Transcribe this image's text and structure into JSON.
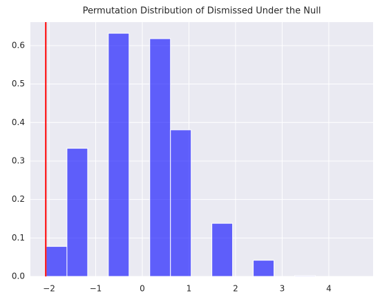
{
  "chart_data": {
    "type": "histogram",
    "title": "Permutation Distribution of Dismissed Under the Null",
    "bins": [
      -2.06,
      -1.616,
      -1.172,
      -0.728,
      -0.284,
      0.16,
      0.604,
      1.048,
      1.492,
      1.936,
      2.38,
      2.824,
      3.268,
      3.712,
      4.156,
      4.6
    ],
    "values": [
      0.078,
      0.333,
      0,
      0.632,
      0,
      0.618,
      0.381,
      0,
      0.138,
      0,
      0.042,
      0,
      0.002,
      0,
      0
    ],
    "color": "#0000ff",
    "alpha": 0.6,
    "vline": {
      "x": -2.07,
      "color": "#ff0000"
    },
    "xlim": [
      -2.4,
      4.95
    ],
    "ylim": [
      0,
      0.661
    ],
    "xticks": [
      {
        "value": -2,
        "label": "−2"
      },
      {
        "value": -1,
        "label": "−1"
      },
      0,
      1,
      2,
      3,
      4
    ],
    "yticks": [
      {
        "value": 0,
        "label": "0.0"
      },
      0.1,
      0.2,
      0.3,
      0.4,
      0.5,
      0.6
    ],
    "grid": true
  }
}
